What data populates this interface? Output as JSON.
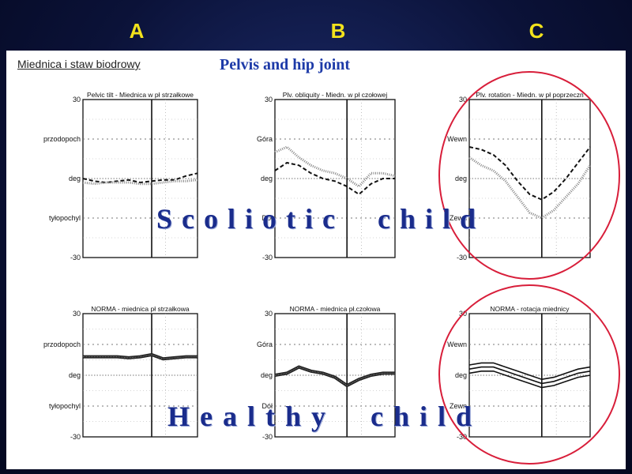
{
  "header": {
    "col_a": "A",
    "col_b": "B",
    "col_c": "C"
  },
  "panel": {
    "title_polish": "Miednica i staw biodrowy",
    "title_english": "Pelvis and hip joint"
  },
  "overlays": {
    "scoliotic": "Scoliotic  child",
    "healthy": "Healthy  child"
  },
  "colors": {
    "highlight_circle": "#d81e3a",
    "overlay_text": "#1a2c8c",
    "title_blue": "#1d3aa8",
    "letters": "#f2e21c"
  },
  "chart_data": [
    {
      "type": "line",
      "row": "scoliotic",
      "column": "A",
      "title": "Pelvic tilt - Miednica w pł strzałkowe",
      "yticks": [
        "30",
        "przodopoch",
        "deg",
        "tyłopochyl",
        "-30"
      ],
      "ylim": [
        -30,
        30
      ],
      "x": [
        0,
        10,
        20,
        30,
        40,
        50,
        60,
        70,
        80,
        90,
        100
      ],
      "cycle_marker": 60,
      "series": [
        {
          "values": [
            0,
            -1,
            -1.5,
            -1,
            -0.5,
            -1.5,
            -1,
            -0.5,
            -0.5,
            1,
            2
          ],
          "style": "dashed"
        },
        {
          "values": [
            -1.5,
            -2,
            -1.5,
            -1.5,
            -1.5,
            -2,
            -2,
            -1.5,
            -1,
            -1,
            -0.5
          ],
          "style": "dotted"
        }
      ]
    },
    {
      "type": "line",
      "row": "scoliotic",
      "column": "B",
      "title": "Plv. obliquity - Miedn. w pł czołowej",
      "yticks": [
        "30",
        "Góra",
        "deg",
        "Dół",
        "-30"
      ],
      "ylim": [
        -30,
        30
      ],
      "x": [
        0,
        10,
        20,
        30,
        40,
        50,
        60,
        70,
        80,
        90,
        100
      ],
      "cycle_marker": 60,
      "series": [
        {
          "values": [
            3,
            6,
            5,
            2,
            0,
            -1,
            -3,
            -6,
            -2,
            0,
            0
          ],
          "style": "dashed"
        },
        {
          "values": [
            10,
            12,
            8,
            5,
            3,
            2,
            0,
            -3,
            2,
            2,
            1
          ],
          "style": "dotted"
        }
      ]
    },
    {
      "type": "line",
      "row": "scoliotic",
      "column": "C",
      "title": "Plv. rotation - Miedn. w pł poprzeczn",
      "yticks": [
        "30",
        "Wewn",
        "deg",
        "Zewn",
        "-30"
      ],
      "ylim": [
        -30,
        30
      ],
      "x": [
        0,
        10,
        20,
        30,
        40,
        50,
        60,
        70,
        80,
        90,
        100
      ],
      "cycle_marker": 60,
      "series": [
        {
          "values": [
            12,
            11,
            9,
            5,
            -1,
            -6,
            -8,
            -5,
            0,
            6,
            12
          ],
          "style": "dashed"
        },
        {
          "values": [
            8,
            5,
            3,
            -1,
            -7,
            -13,
            -15,
            -12,
            -7,
            -2,
            5
          ],
          "style": "dotted"
        }
      ]
    },
    {
      "type": "line",
      "row": "healthy",
      "column": "A",
      "title": "NORMA - miednica pł strzałkowa",
      "yticks": [
        "30",
        "przodopoch",
        "deg",
        "tyłopochyl",
        "-30"
      ],
      "ylim": [
        -30,
        30
      ],
      "x": [
        0,
        10,
        20,
        30,
        40,
        50,
        60,
        70,
        80,
        90,
        100
      ],
      "cycle_marker": 60,
      "series": [
        {
          "values": [
            9,
            9,
            9,
            9,
            8.5,
            9,
            10,
            8,
            8.5,
            9,
            9
          ],
          "style": "band"
        }
      ]
    },
    {
      "type": "line",
      "row": "healthy",
      "column": "B",
      "title": "NORMA - miednica pł.czołowa",
      "yticks": [
        "30",
        "Góra",
        "deg",
        "Dół",
        "-30"
      ],
      "ylim": [
        -30,
        30
      ],
      "x": [
        0,
        10,
        20,
        30,
        40,
        50,
        60,
        70,
        80,
        90,
        100
      ],
      "cycle_marker": 60,
      "series": [
        {
          "values": [
            0,
            1,
            4,
            2,
            1,
            -1,
            -5,
            -2,
            0,
            1,
            1
          ],
          "style": "band"
        }
      ]
    },
    {
      "type": "line",
      "row": "healthy",
      "column": "C",
      "title": "NORMA - rotacja miednicy",
      "yticks": [
        "30",
        "Wewn",
        "deg",
        "Zewn",
        "-30"
      ],
      "ylim": [
        -30,
        30
      ],
      "x": [
        0,
        10,
        20,
        30,
        40,
        50,
        60,
        70,
        80,
        90,
        100
      ],
      "cycle_marker": 60,
      "series": [
        {
          "values": [
            3,
            4,
            4,
            2,
            0,
            -2,
            -4,
            -3,
            -1,
            1,
            2
          ],
          "style": "multi",
          "offsets": [
            -2,
            0,
            2
          ]
        }
      ]
    }
  ]
}
